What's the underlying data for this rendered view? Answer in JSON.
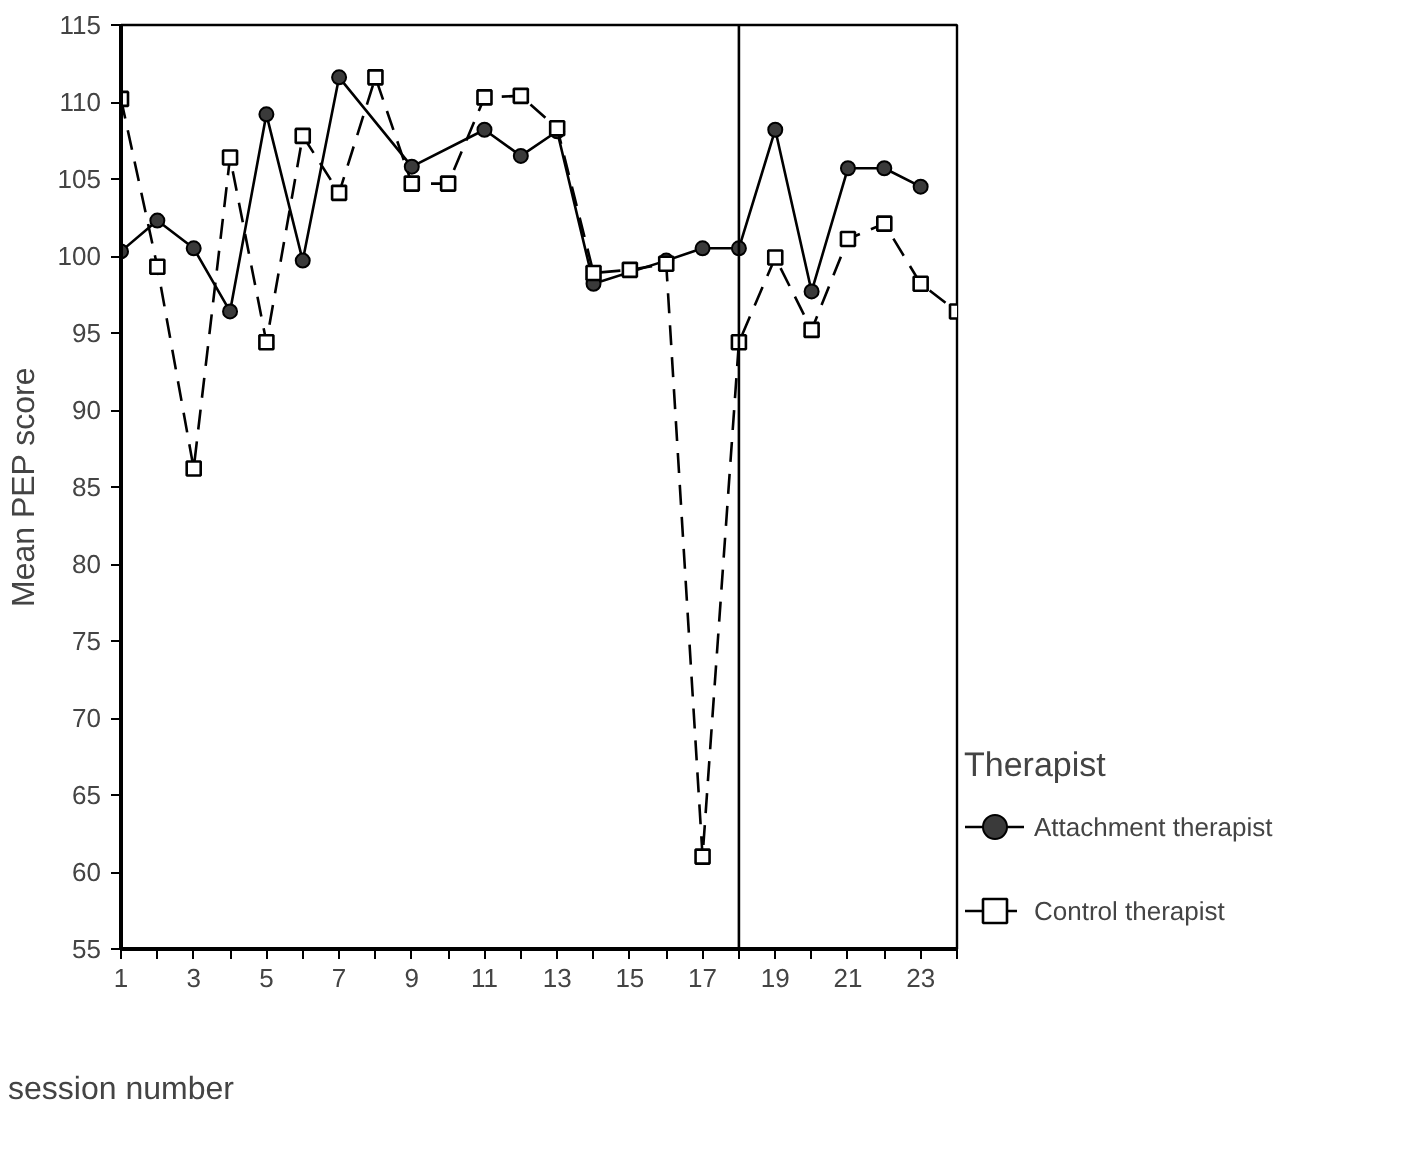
{
  "chart_data": {
    "type": "line",
    "xlabel": "session number",
    "ylabel": "Mean PEP score",
    "legend_title": "Therapist",
    "xlim": [
      1,
      24
    ],
    "ylim": [
      55,
      115
    ],
    "xticks": [
      1,
      {
        "value": 2,
        "label": null
      },
      3,
      {
        "value": 4,
        "label": null
      },
      5,
      {
        "value": 6,
        "label": null
      },
      7,
      {
        "value": 8,
        "label": null
      },
      9,
      {
        "value": 10,
        "label": null
      },
      11,
      {
        "value": 12,
        "label": null
      },
      13,
      {
        "value": 14,
        "label": null
      },
      15,
      {
        "value": 16,
        "label": null
      },
      17,
      {
        "value": 18,
        "label": null
      },
      19,
      {
        "value": 20,
        "label": null
      },
      21,
      {
        "value": 22,
        "label": null
      },
      23,
      {
        "value": 24,
        "label": null
      }
    ],
    "yticks": [
      55,
      60,
      65,
      70,
      75,
      80,
      85,
      90,
      95,
      100,
      105,
      110,
      115
    ],
    "grid": false,
    "legend": "right",
    "ref_lines": [
      {
        "axis": "x",
        "value": 18,
        "color": "#000000",
        "line_style": "solid"
      }
    ],
    "series": [
      {
        "name": "Attachment therapist",
        "color": "#000000",
        "marker": "circle",
        "line_style": "solid",
        "x": [
          1,
          2,
          3,
          4,
          5,
          6,
          7,
          9,
          11,
          12,
          13,
          14,
          16,
          17,
          18,
          19,
          20,
          21,
          22,
          23
        ],
        "values": [
          100.3,
          102.3,
          100.5,
          96.4,
          109.2,
          99.7,
          111.6,
          105.8,
          108.2,
          106.5,
          108.1,
          98.2,
          99.7,
          100.5,
          100.5,
          108.2,
          97.7,
          105.7,
          105.7,
          104.5
        ]
      },
      {
        "name": "Control therapist",
        "color": "#000000",
        "marker": "square",
        "line_style": "dashed",
        "x": [
          1,
          2,
          3,
          4,
          5,
          6,
          7,
          8,
          9,
          10,
          11,
          12,
          13,
          14,
          15,
          16,
          17,
          18,
          19,
          20,
          21,
          22,
          23,
          24
        ],
        "values": [
          110.2,
          99.3,
          86.2,
          106.4,
          94.4,
          107.8,
          104.1,
          111.6,
          104.7,
          104.7,
          110.3,
          110.4,
          108.3,
          98.9,
          99.1,
          99.5,
          61,
          94.4,
          99.9,
          95.2,
          101.1,
          102.1,
          98.2,
          96.4
        ]
      }
    ]
  }
}
